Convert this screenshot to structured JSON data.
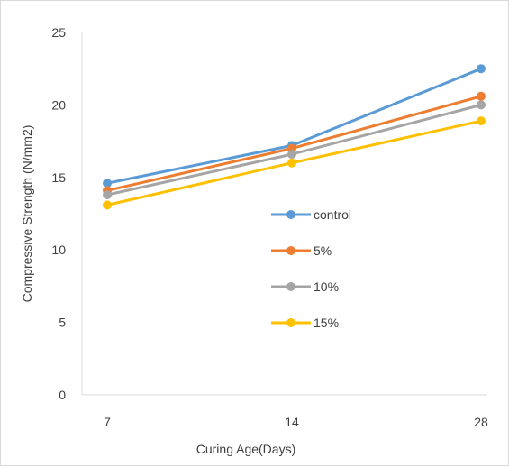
{
  "chart_data": {
    "type": "line",
    "title": "",
    "xlabel": "Curing Age(Days)",
    "ylabel": "Compressive Strength (N/mm2)",
    "categories": [
      "7",
      "14",
      "28"
    ],
    "ylim": [
      0,
      25
    ],
    "yticks": [
      0,
      5,
      10,
      15,
      20,
      25
    ],
    "grid": false,
    "legend_position": "inside-center-right",
    "series": [
      {
        "name": "control",
        "color": "#5b9bd5",
        "values": [
          14.6,
          17.2,
          22.5
        ]
      },
      {
        "name": "5%",
        "color": "#ed7d31",
        "values": [
          14.1,
          17.0,
          20.6
        ]
      },
      {
        "name": "10%",
        "color": "#a5a5a5",
        "values": [
          13.8,
          16.6,
          20.0
        ]
      },
      {
        "name": "15%",
        "color": "#ffc000",
        "values": [
          13.1,
          16.0,
          18.9
        ]
      }
    ]
  }
}
